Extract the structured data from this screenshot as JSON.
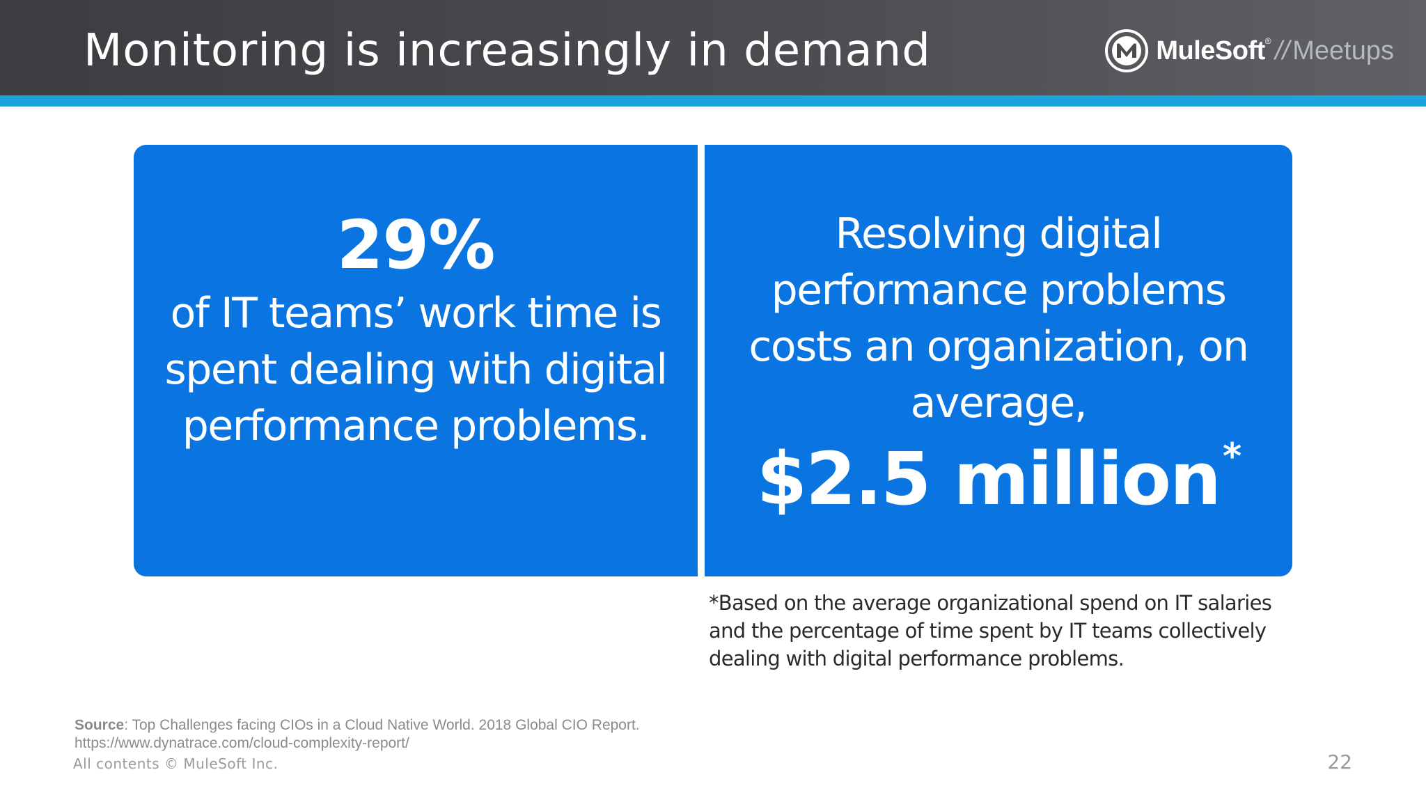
{
  "header": {
    "title": "Monitoring is increasingly in demand",
    "logo": {
      "icon": "mulesoft-m-icon",
      "brand": "MuleSoft",
      "registered": "®",
      "separator": "//",
      "suffix": "Meetups"
    }
  },
  "left_panel": {
    "stat": "29%",
    "description": "of IT teams’ work time is spent dealing with digital performance problems."
  },
  "right_panel": {
    "description": "Resolving digital performance problems costs an organization, on average,",
    "amount": "$2.5 million",
    "asterisk": "*"
  },
  "footnote": "*Based on the average organizational spend on IT salaries and the percentage of time spent by IT teams collectively dealing with digital performance problems.",
  "source": {
    "label": "Source",
    "text": ": Top Challenges facing CIOs in a Cloud Native World.  2018 Global CIO Report.",
    "url": "https://www.dynatrace.com/cloud-complexity-report/"
  },
  "copyright": "All contents © MuleSoft Inc.",
  "page_number": "22",
  "colors": {
    "header_dark": "#3b3d40",
    "accent_stripe": "#1ba3dd",
    "panel_blue": "#0a74e1"
  }
}
